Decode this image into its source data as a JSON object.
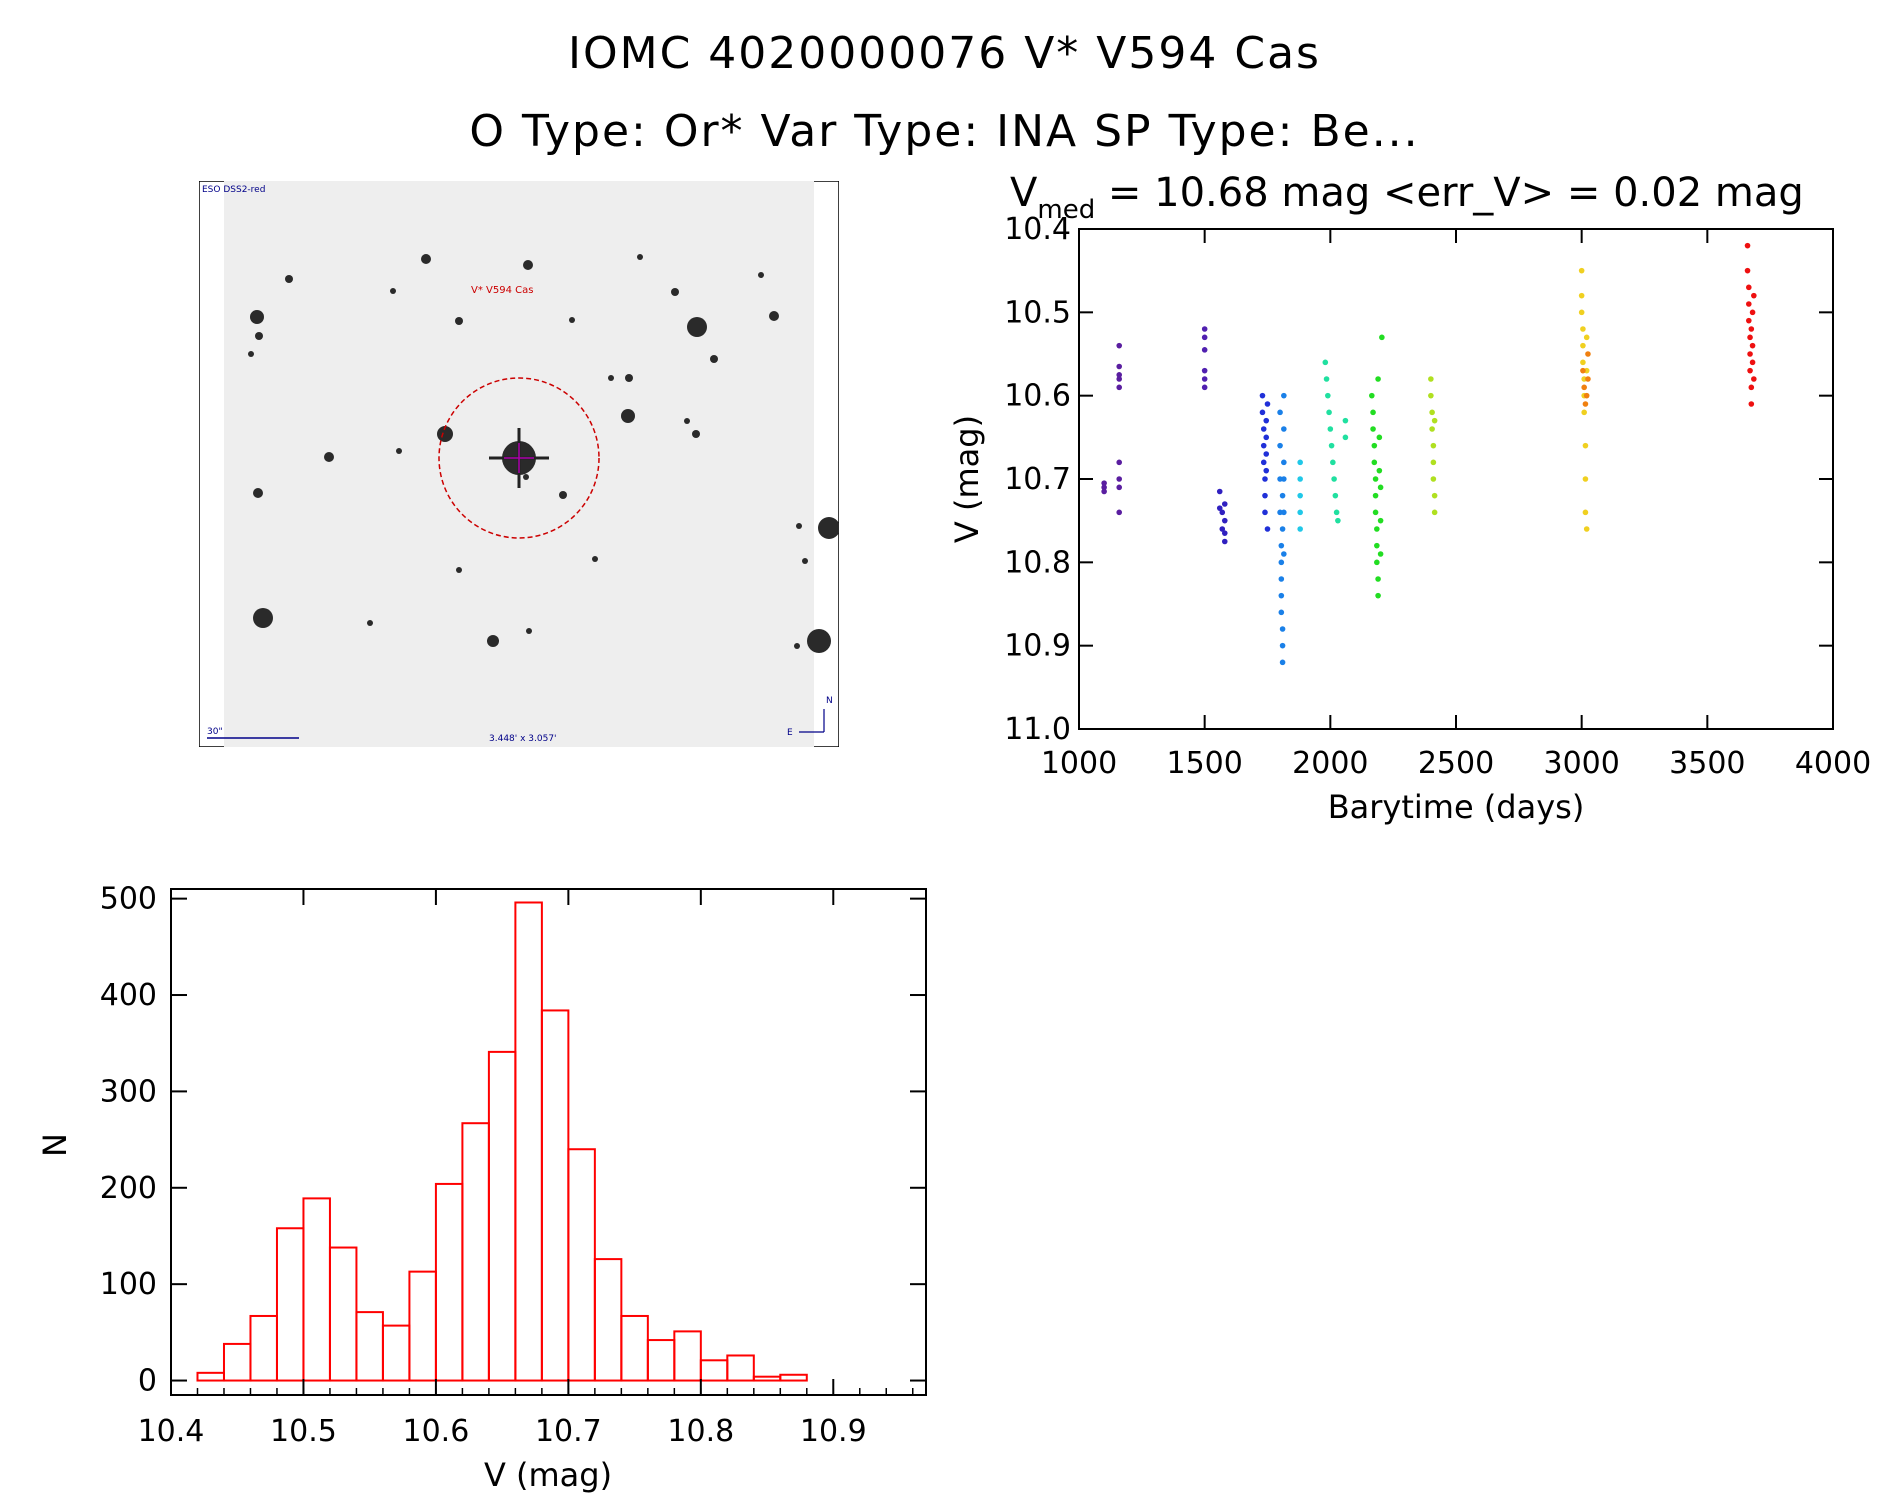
{
  "header": {
    "title_line1": "IOMC 4020000076    V* V594 Cas",
    "title_line2": "O Type: Or*  Var Type: INA  SP Type: Be..."
  },
  "image_panel": {
    "survey_label": "ESO DSS2-red",
    "target_label": "V* V594 Cas",
    "scale_label": "30\"",
    "fov_label": "3.448' x 3.057'",
    "north_label": "N",
    "east_label": "E"
  },
  "chart_data": [
    {
      "type": "scatter",
      "title_symbol": "V",
      "title_subscript": "med",
      "title_rest": " = 10.68 mag <err_V> = 0.02 mag",
      "xlabel": "Barytime (days)",
      "ylabel": "V (mag)",
      "xlim": [
        1000,
        4000
      ],
      "ylim": [
        11.0,
        10.4
      ],
      "x_ticks": [
        "1000",
        "1500",
        "2000",
        "2500",
        "3000",
        "3500",
        "4000"
      ],
      "y_ticks": [
        "10.4",
        "10.5",
        "10.6",
        "10.7",
        "10.8",
        "10.9",
        "11.0"
      ],
      "series": [
        {
          "name": "seg1",
          "color": "#5a1ea0",
          "x": [
            1100,
            1100,
            1100,
            1160,
            1160,
            1160,
            1160,
            1160,
            1160,
            1160,
            1160,
            1160
          ],
          "y": [
            10.705,
            10.71,
            10.715,
            10.54,
            10.565,
            10.575,
            10.58,
            10.59,
            10.68,
            10.7,
            10.71,
            10.74
          ]
        },
        {
          "name": "seg2",
          "color": "#5020b0",
          "x": [
            1500,
            1500,
            1500,
            1500,
            1500,
            1500
          ],
          "y": [
            10.52,
            10.53,
            10.545,
            10.57,
            10.58,
            10.59
          ]
        },
        {
          "name": "seg3",
          "color": "#3020c0",
          "x": [
            1560,
            1560,
            1570,
            1570,
            1580,
            1580,
            1580,
            1580
          ],
          "y": [
            10.715,
            10.735,
            10.74,
            10.76,
            10.73,
            10.75,
            10.765,
            10.775
          ]
        },
        {
          "name": "seg4",
          "color": "#2030d8",
          "x": [
            1730,
            1730,
            1735,
            1735,
            1735,
            1740,
            1740,
            1740,
            1745,
            1745,
            1745,
            1745,
            1750,
            1750
          ],
          "y": [
            10.6,
            10.62,
            10.64,
            10.66,
            10.68,
            10.7,
            10.72,
            10.74,
            10.63,
            10.65,
            10.67,
            10.69,
            10.61,
            10.76
          ]
        },
        {
          "name": "seg5",
          "color": "#1a80e8",
          "x": [
            1800,
            1800,
            1800,
            1800,
            1805,
            1805,
            1805,
            1805,
            1805,
            1810,
            1810,
            1810,
            1810,
            1810,
            1815,
            1815,
            1815,
            1815,
            1815,
            1815
          ],
          "y": [
            10.62,
            10.66,
            10.7,
            10.74,
            10.78,
            10.8,
            10.82,
            10.84,
            10.86,
            10.88,
            10.9,
            10.92,
            10.76,
            10.72,
            10.6,
            10.64,
            10.68,
            10.7,
            10.74,
            10.79
          ]
        },
        {
          "name": "seg6",
          "color": "#20c8e8",
          "x": [
            1880,
            1880,
            1880,
            1880,
            1880
          ],
          "y": [
            10.68,
            10.7,
            10.72,
            10.74,
            10.76
          ]
        },
        {
          "name": "seg7",
          "color": "#20e0a0",
          "x": [
            1980,
            1985,
            1990,
            1995,
            2000,
            2005,
            2010,
            2015,
            2020,
            2025,
            2030,
            2060,
            2060
          ],
          "y": [
            10.56,
            10.58,
            10.6,
            10.62,
            10.64,
            10.66,
            10.68,
            10.7,
            10.72,
            10.74,
            10.75,
            10.63,
            10.65
          ]
        },
        {
          "name": "seg8",
          "color": "#22dd22",
          "x": [
            2165,
            2170,
            2170,
            2175,
            2175,
            2180,
            2180,
            2180,
            2185,
            2185,
            2185,
            2190,
            2190,
            2190,
            2195,
            2195,
            2200,
            2200,
            2200,
            2205
          ],
          "y": [
            10.6,
            10.62,
            10.64,
            10.66,
            10.68,
            10.7,
            10.72,
            10.74,
            10.76,
            10.78,
            10.8,
            10.82,
            10.84,
            10.58,
            10.65,
            10.69,
            10.71,
            10.75,
            10.79,
            10.53
          ]
        },
        {
          "name": "seg9",
          "color": "#b0e020",
          "x": [
            2400,
            2400,
            2405,
            2405,
            2410,
            2410,
            2410,
            2415,
            2415,
            2415
          ],
          "y": [
            10.58,
            10.6,
            10.62,
            10.64,
            10.66,
            10.68,
            10.7,
            10.72,
            10.74,
            10.63
          ]
        },
        {
          "name": "seg10",
          "color": "#f0d020",
          "x": [
            3000,
            3000,
            3000,
            3005,
            3005,
            3005,
            3010,
            3010,
            3010,
            3015,
            3015,
            3015,
            3020,
            3020,
            3020
          ],
          "y": [
            10.45,
            10.48,
            10.5,
            10.52,
            10.54,
            10.56,
            10.58,
            10.6,
            10.62,
            10.66,
            10.7,
            10.74,
            10.76,
            10.53,
            10.57
          ]
        },
        {
          "name": "seg11",
          "color": "#f08010",
          "x": [
            3005,
            3010,
            3015,
            3020,
            3025,
            3025
          ],
          "y": [
            10.57,
            10.59,
            10.61,
            10.6,
            10.55,
            10.58
          ]
        },
        {
          "name": "seg12",
          "color": "#ee1010",
          "x": [
            3660,
            3660,
            3665,
            3665,
            3665,
            3670,
            3670,
            3670,
            3675,
            3675,
            3675,
            3680,
            3680,
            3680,
            3685,
            3685
          ],
          "y": [
            10.42,
            10.45,
            10.47,
            10.49,
            10.51,
            10.53,
            10.55,
            10.57,
            10.59,
            10.61,
            10.52,
            10.5,
            10.54,
            10.56,
            10.48,
            10.58
          ]
        }
      ]
    },
    {
      "type": "histogram",
      "xlabel": "V (mag)",
      "ylabel": "N",
      "xlim": [
        10.4,
        10.97
      ],
      "ylim": [
        -15,
        510
      ],
      "x_ticks": [
        "10.4",
        "10.5",
        "10.6",
        "10.7",
        "10.8",
        "10.9"
      ],
      "y_ticks": [
        "0",
        "100",
        "200",
        "300",
        "400",
        "500"
      ],
      "bin_edges": [
        10.42,
        10.44,
        10.46,
        10.48,
        10.5,
        10.52,
        10.54,
        10.56,
        10.58,
        10.6,
        10.62,
        10.64,
        10.66,
        10.68,
        10.7,
        10.72,
        10.74,
        10.76,
        10.78,
        10.8,
        10.82,
        10.84,
        10.86,
        10.88,
        10.9,
        10.92,
        10.94
      ],
      "counts": [
        8,
        38,
        67,
        158,
        189,
        138,
        71,
        57,
        113,
        204,
        267,
        341,
        496,
        384,
        240,
        126,
        67,
        42,
        51,
        21,
        26,
        4,
        6,
        0,
        0,
        0
      ],
      "color": "#ff0000"
    }
  ]
}
